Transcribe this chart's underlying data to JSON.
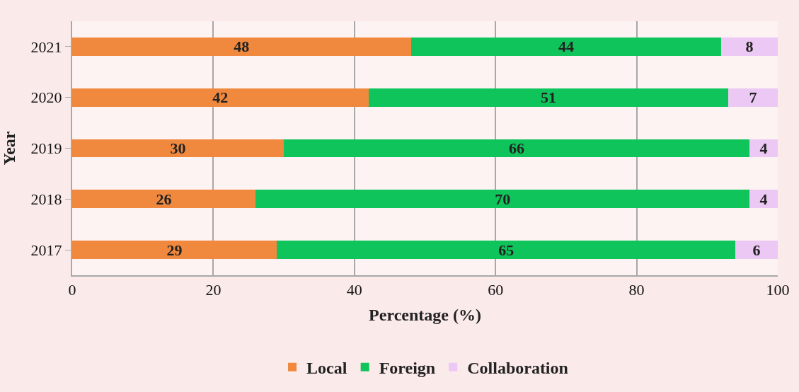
{
  "chart_data": {
    "type": "bar",
    "orientation": "horizontal",
    "stacked": true,
    "xlabel": "Percentage (%)",
    "ylabel": "Year",
    "categories": [
      "2021",
      "2020",
      "2019",
      "2018",
      "2017"
    ],
    "series": [
      {
        "name": "Local",
        "color": "#f0883e",
        "values": [
          48,
          42,
          30,
          26,
          29
        ]
      },
      {
        "name": "Foreign",
        "color": "#10c45c",
        "values": [
          44,
          51,
          66,
          70,
          65
        ]
      },
      {
        "name": "Collaboration",
        "color": "#ecc8f4",
        "values": [
          8,
          7,
          4,
          4,
          6
        ]
      }
    ],
    "xlim": [
      0,
      100
    ],
    "xticks": [
      0,
      20,
      40,
      60,
      80,
      100
    ],
    "grid": "x",
    "legend": "bottom",
    "data_labels": true
  }
}
